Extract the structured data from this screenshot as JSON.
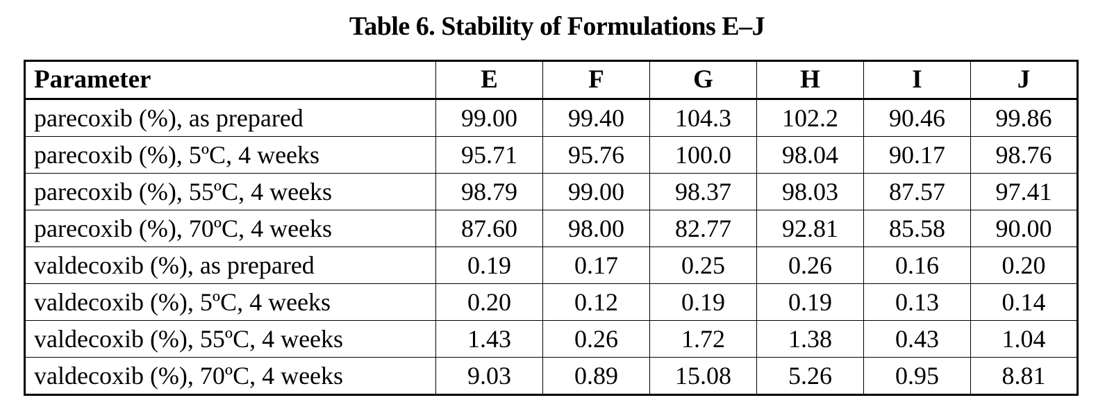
{
  "title": "Table 6.  Stability of Formulations E–J",
  "table": {
    "columns": [
      "Parameter",
      "E",
      "F",
      "G",
      "H",
      "I",
      "J"
    ],
    "rows": [
      {
        "parameter": "parecoxib (%), as prepared",
        "values": [
          "99.00",
          "99.40",
          "104.3",
          "102.2",
          "90.46",
          "99.86"
        ]
      },
      {
        "parameter": "parecoxib (%), 5ºC, 4 weeks",
        "values": [
          "95.71",
          "95.76",
          "100.0",
          "98.04",
          "90.17",
          "98.76"
        ]
      },
      {
        "parameter": "parecoxib (%), 55ºC, 4 weeks",
        "values": [
          "98.79",
          "99.00",
          "98.37",
          "98.03",
          "87.57",
          "97.41"
        ]
      },
      {
        "parameter": "parecoxib (%), 70ºC, 4 weeks",
        "values": [
          "87.60",
          "98.00",
          "82.77",
          "92.81",
          "85.58",
          "90.00"
        ]
      },
      {
        "parameter": "valdecoxib (%), as prepared",
        "values": [
          "0.19",
          "0.17",
          "0.25",
          "0.26",
          "0.16",
          "0.20"
        ]
      },
      {
        "parameter": "valdecoxib (%), 5ºC, 4 weeks",
        "values": [
          "0.20",
          "0.12",
          "0.19",
          "0.19",
          "0.13",
          "0.14"
        ]
      },
      {
        "parameter": "valdecoxib (%), 55ºC, 4 weeks",
        "values": [
          "1.43",
          "0.26",
          "1.72",
          "1.38",
          "0.43",
          "1.04"
        ]
      },
      {
        "parameter": "valdecoxib (%), 70ºC, 4 weeks",
        "values": [
          "9.03",
          "0.89",
          "15.08",
          "5.26",
          "0.95",
          "8.81"
        ]
      }
    ]
  }
}
